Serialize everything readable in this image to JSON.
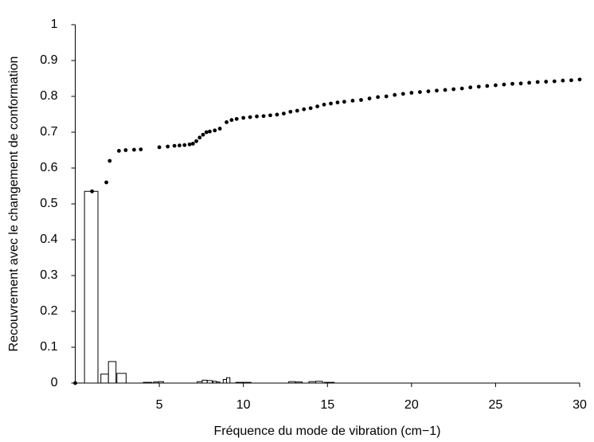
{
  "chart_data": {
    "type": "combo",
    "x_label": "Fréquence du mode de vibration (cm−1)",
    "y_label": "Recouvrement avec le changement de conformation",
    "xlim": [
      0,
      30
    ],
    "xticks": [
      5,
      10,
      15,
      20,
      25,
      30
    ],
    "ylim": [
      0,
      1
    ],
    "yticks": [
      0,
      0.1,
      0.2,
      0.3,
      0.4,
      0.5,
      0.6,
      0.7,
      0.8,
      0.9,
      1
    ],
    "grid": false,
    "series": [
      {
        "type": "bar",
        "color": "#ffffff",
        "x": [
          0.95,
          1.75,
          2.2,
          2.75,
          4.3,
          4.8,
          5.1,
          7.4,
          7.7,
          8.0,
          8.3,
          8.5,
          8.9,
          9.1,
          10.0,
          12.9,
          13.3,
          14.1,
          14.5,
          15.1
        ],
        "values": [
          0.535,
          0.025,
          0.06,
          0.027,
          0.002,
          0.003,
          0.004,
          0.004,
          0.008,
          0.007,
          0.005,
          0.003,
          0.01,
          0.015,
          0.002,
          0.004,
          0.003,
          0.004,
          0.005,
          0.002
        ]
      },
      {
        "type": "scatter",
        "color": "#000000",
        "x": [
          0,
          1,
          1.85,
          2.05,
          2.6,
          3.0,
          3.5,
          3.9,
          5.0,
          5.5,
          5.9,
          6.2,
          6.5,
          6.8,
          7.0,
          7.2,
          7.4,
          7.6,
          7.8,
          8.0,
          8.3,
          8.6,
          9.0,
          9.3,
          9.6,
          10.0,
          10.4,
          10.8,
          11.2,
          11.6,
          12.0,
          12.4,
          12.8,
          13.2,
          13.6,
          14.0,
          14.4,
          14.8,
          15.2,
          15.6,
          16.0,
          16.5,
          17.0,
          17.5,
          18.0,
          18.5,
          19.0,
          19.5,
          20.0,
          20.5,
          21.0,
          21.5,
          22.0,
          22.5,
          23.0,
          23.5,
          24.0,
          24.5,
          25.0,
          25.5,
          26.0,
          26.5,
          27.0,
          27.5,
          28.0,
          28.5,
          29.0,
          29.5,
          30.0
        ],
        "values": [
          0,
          0.535,
          0.56,
          0.62,
          0.648,
          0.65,
          0.651,
          0.652,
          0.658,
          0.66,
          0.662,
          0.663,
          0.664,
          0.666,
          0.668,
          0.675,
          0.685,
          0.693,
          0.7,
          0.702,
          0.705,
          0.71,
          0.728,
          0.734,
          0.737,
          0.74,
          0.742,
          0.744,
          0.745,
          0.747,
          0.749,
          0.752,
          0.757,
          0.76,
          0.764,
          0.767,
          0.772,
          0.777,
          0.78,
          0.783,
          0.785,
          0.788,
          0.79,
          0.794,
          0.798,
          0.8,
          0.804,
          0.807,
          0.81,
          0.812,
          0.814,
          0.816,
          0.818,
          0.82,
          0.822,
          0.825,
          0.827,
          0.829,
          0.831,
          0.833,
          0.835,
          0.836,
          0.838,
          0.84,
          0.841,
          0.842,
          0.844,
          0.845,
          0.847
        ]
      }
    ]
  }
}
